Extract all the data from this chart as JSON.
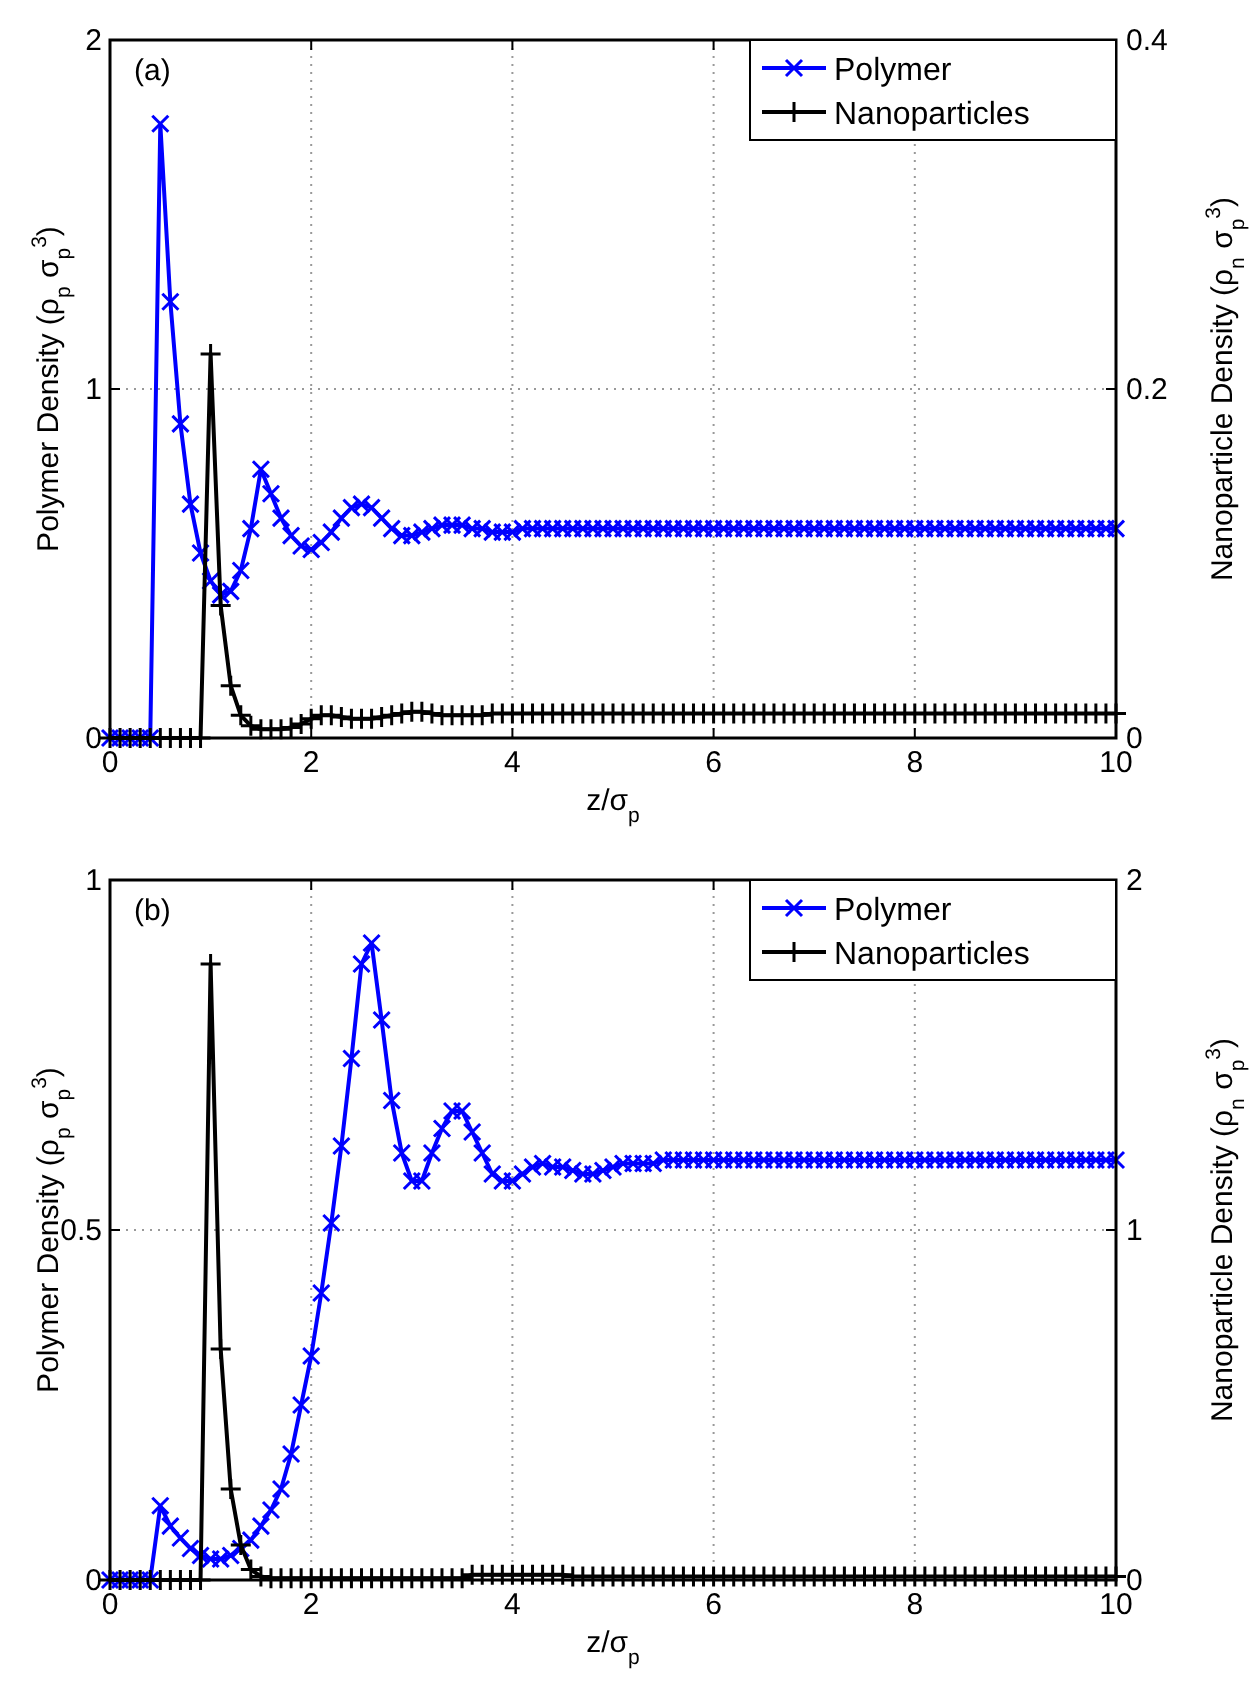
{
  "chart_data": [
    {
      "type": "line",
      "annotations": [
        "(a)"
      ],
      "xlabel": "z/σ$_{p}$",
      "ylabel": "Polymer Density (ρ$_{p}$ σ$_{p}$$^{3}$)",
      "y2label": "Nanoparticle Density (ρ$_{n}$ σ$_{p}$$^{3}$)",
      "x": [
        0,
        0.1,
        0.2,
        0.3,
        0.4,
        0.5,
        0.6,
        0.7,
        0.8,
        0.9,
        1,
        1.1,
        1.2,
        1.3,
        1.4,
        1.5,
        1.6,
        1.7,
        1.8,
        1.9,
        2,
        2.1,
        2.2,
        2.3,
        2.4,
        2.5,
        2.6,
        2.7,
        2.8,
        2.9,
        3,
        3.1,
        3.2,
        3.3,
        3.4,
        3.5,
        3.6,
        3.7,
        3.8,
        3.9,
        4,
        4.1,
        4.2,
        4.3,
        4.4,
        4.5,
        4.6,
        4.7,
        4.8,
        4.9,
        5,
        5.1,
        5.2,
        5.3,
        5.4,
        5.5,
        5.6,
        5.7,
        5.8,
        5.9,
        6,
        6.1,
        6.2,
        6.3,
        6.4,
        6.5,
        6.6,
        6.7,
        6.8,
        6.9,
        7,
        7.1,
        7.2,
        7.3,
        7.4,
        7.5,
        7.6,
        7.7,
        7.8,
        7.9,
        8,
        8.1,
        8.2,
        8.3,
        8.4,
        8.5,
        8.6,
        8.7,
        8.8,
        8.9,
        9,
        9.1,
        9.2,
        9.3,
        9.4,
        9.5,
        9.6,
        9.7,
        9.8,
        9.9,
        10
      ],
      "series": [
        {
          "name": "Polymer",
          "color": "#0000ff",
          "marker": "cross",
          "values": [
            0,
            0,
            0,
            0,
            0,
            1.76,
            1.25,
            0.9,
            0.67,
            0.53,
            0.45,
            0.41,
            0.42,
            0.48,
            0.6,
            0.77,
            0.7,
            0.63,
            0.58,
            0.55,
            0.54,
            0.56,
            0.59,
            0.63,
            0.66,
            0.67,
            0.66,
            0.63,
            0.6,
            0.58,
            0.58,
            0.59,
            0.6,
            0.61,
            0.61,
            0.61,
            0.6,
            0.6,
            0.59,
            0.59,
            0.59,
            0.6,
            0.6,
            0.6,
            0.6,
            0.6,
            0.6,
            0.6,
            0.6,
            0.6,
            0.6,
            0.6,
            0.6,
            0.6,
            0.6,
            0.6,
            0.6,
            0.6,
            0.6,
            0.6,
            0.6,
            0.6,
            0.6,
            0.6,
            0.6,
            0.6,
            0.6,
            0.6,
            0.6,
            0.6,
            0.6,
            0.6,
            0.6,
            0.6,
            0.6,
            0.6,
            0.6,
            0.6,
            0.6,
            0.6,
            0.6,
            0.6,
            0.6,
            0.6,
            0.6,
            0.6,
            0.6,
            0.6,
            0.6,
            0.6,
            0.6,
            0.6,
            0.6,
            0.6,
            0.6,
            0.6,
            0.6,
            0.6,
            0.6,
            0.6,
            0.6
          ]
        },
        {
          "name": "Nanoparticles",
          "color": "#000000",
          "marker": "plus",
          "axis": "y2",
          "values": [
            0,
            0,
            0,
            0,
            0,
            0,
            0,
            0,
            0,
            0,
            0.22,
            0.076,
            0.03,
            0.013,
            0.007,
            0.005,
            0.005,
            0.005,
            0.006,
            0.008,
            0.011,
            0.013,
            0.013,
            0.012,
            0.011,
            0.011,
            0.011,
            0.012,
            0.013,
            0.014,
            0.015,
            0.015,
            0.014,
            0.013,
            0.013,
            0.013,
            0.013,
            0.013,
            0.014,
            0.014,
            0.014,
            0.014,
            0.014,
            0.014,
            0.014,
            0.014,
            0.014,
            0.014,
            0.014,
            0.014,
            0.014,
            0.014,
            0.014,
            0.014,
            0.014,
            0.014,
            0.014,
            0.014,
            0.014,
            0.014,
            0.014,
            0.014,
            0.014,
            0.014,
            0.014,
            0.014,
            0.014,
            0.014,
            0.014,
            0.014,
            0.014,
            0.014,
            0.014,
            0.014,
            0.014,
            0.014,
            0.014,
            0.014,
            0.014,
            0.014,
            0.014,
            0.014,
            0.014,
            0.014,
            0.014,
            0.014,
            0.014,
            0.014,
            0.014,
            0.014,
            0.014,
            0.014,
            0.014,
            0.014,
            0.014,
            0.014,
            0.014,
            0.014,
            0.014,
            0.014,
            0.014
          ]
        }
      ],
      "xlim": [
        0,
        10
      ],
      "xticks": [
        0,
        2,
        4,
        6,
        8,
        10
      ],
      "ylim": [
        0,
        2
      ],
      "yticks": [
        0,
        1,
        2
      ],
      "y2lim": [
        0,
        0.4
      ],
      "y2ticks": [
        0,
        0.2,
        0.4
      ],
      "grid": true,
      "legend": "top right",
      "line_style": "solid"
    },
    {
      "type": "line",
      "annotations": [
        "(b)"
      ],
      "xlabel": "z/σ$_{p}$",
      "ylabel": "Polymer Density (ρ$_{p}$ σ$_{p}$$^{3}$)",
      "y2label": "Nanoparticle Density (ρ$_{n}$ σ$_{p}$$^{3}$)",
      "x": [
        0,
        0.1,
        0.2,
        0.3,
        0.4,
        0.5,
        0.6,
        0.7,
        0.8,
        0.9,
        1,
        1.1,
        1.2,
        1.3,
        1.4,
        1.5,
        1.6,
        1.7,
        1.8,
        1.9,
        2,
        2.1,
        2.2,
        2.3,
        2.4,
        2.5,
        2.6,
        2.7,
        2.8,
        2.9,
        3,
        3.1,
        3.2,
        3.3,
        3.4,
        3.5,
        3.6,
        3.7,
        3.8,
        3.9,
        4,
        4.1,
        4.2,
        4.3,
        4.4,
        4.5,
        4.6,
        4.7,
        4.8,
        4.9,
        5,
        5.1,
        5.2,
        5.3,
        5.4,
        5.5,
        5.6,
        5.7,
        5.8,
        5.9,
        6,
        6.1,
        6.2,
        6.3,
        6.4,
        6.5,
        6.6,
        6.7,
        6.8,
        6.9,
        7,
        7.1,
        7.2,
        7.3,
        7.4,
        7.5,
        7.6,
        7.7,
        7.8,
        7.9,
        8,
        8.1,
        8.2,
        8.3,
        8.4,
        8.5,
        8.6,
        8.7,
        8.8,
        8.9,
        9,
        9.1,
        9.2,
        9.3,
        9.4,
        9.5,
        9.6,
        9.7,
        9.8,
        9.9,
        10
      ],
      "series": [
        {
          "name": "Polymer",
          "color": "#0000ff",
          "marker": "cross",
          "values": [
            0,
            0,
            0,
            0,
            0,
            0.106,
            0.077,
            0.06,
            0.045,
            0.035,
            0.03,
            0.03,
            0.035,
            0.045,
            0.057,
            0.077,
            0.1,
            0.13,
            0.18,
            0.25,
            0.32,
            0.41,
            0.51,
            0.62,
            0.745,
            0.88,
            0.91,
            0.8,
            0.685,
            0.61,
            0.57,
            0.57,
            0.61,
            0.645,
            0.67,
            0.67,
            0.64,
            0.61,
            0.58,
            0.57,
            0.57,
            0.58,
            0.59,
            0.595,
            0.59,
            0.59,
            0.585,
            0.58,
            0.58,
            0.585,
            0.59,
            0.595,
            0.595,
            0.595,
            0.595,
            0.6,
            0.6,
            0.6,
            0.6,
            0.6,
            0.6,
            0.6,
            0.6,
            0.6,
            0.6,
            0.6,
            0.6,
            0.6,
            0.6,
            0.6,
            0.6,
            0.6,
            0.6,
            0.6,
            0.6,
            0.6,
            0.6,
            0.6,
            0.6,
            0.6,
            0.6,
            0.6,
            0.6,
            0.6,
            0.6,
            0.6,
            0.6,
            0.6,
            0.6,
            0.6,
            0.6,
            0.6,
            0.6,
            0.6,
            0.6,
            0.6,
            0.6,
            0.6,
            0.6,
            0.6,
            0.6
          ]
        },
        {
          "name": "Nanoparticles",
          "color": "#000000",
          "marker": "plus",
          "axis": "y2",
          "values": [
            0,
            0,
            0,
            0,
            0,
            0,
            0,
            0,
            0,
            0,
            1.76,
            0.66,
            0.26,
            0.1,
            0.03,
            0.01,
            0.005,
            0.005,
            0.005,
            0.005,
            0.005,
            0.005,
            0.005,
            0.005,
            0.005,
            0.005,
            0.005,
            0.005,
            0.005,
            0.005,
            0.005,
            0.005,
            0.005,
            0.005,
            0.005,
            0.005,
            0.015,
            0.015,
            0.015,
            0.015,
            0.015,
            0.015,
            0.015,
            0.015,
            0.015,
            0.015,
            0.01,
            0.01,
            0.01,
            0.01,
            0.01,
            0.01,
            0.01,
            0.01,
            0.01,
            0.01,
            0.01,
            0.01,
            0.01,
            0.01,
            0.01,
            0.01,
            0.01,
            0.01,
            0.01,
            0.01,
            0.01,
            0.01,
            0.01,
            0.01,
            0.01,
            0.01,
            0.01,
            0.01,
            0.01,
            0.01,
            0.01,
            0.01,
            0.01,
            0.01,
            0.01,
            0.01,
            0.01,
            0.01,
            0.01,
            0.01,
            0.01,
            0.01,
            0.01,
            0.01,
            0.01,
            0.01,
            0.01,
            0.01,
            0.01,
            0.01,
            0.01,
            0.01,
            0.01,
            0.01,
            0.01
          ]
        }
      ],
      "xlim": [
        0,
        10
      ],
      "xticks": [
        0,
        2,
        4,
        6,
        8,
        10
      ],
      "ylim": [
        0,
        1
      ],
      "yticks": [
        0,
        0.5,
        1
      ],
      "y2lim": [
        0,
        2
      ],
      "y2ticks": [
        0,
        1,
        2
      ],
      "grid": true,
      "legend": "top right",
      "line_style": "solid"
    }
  ]
}
